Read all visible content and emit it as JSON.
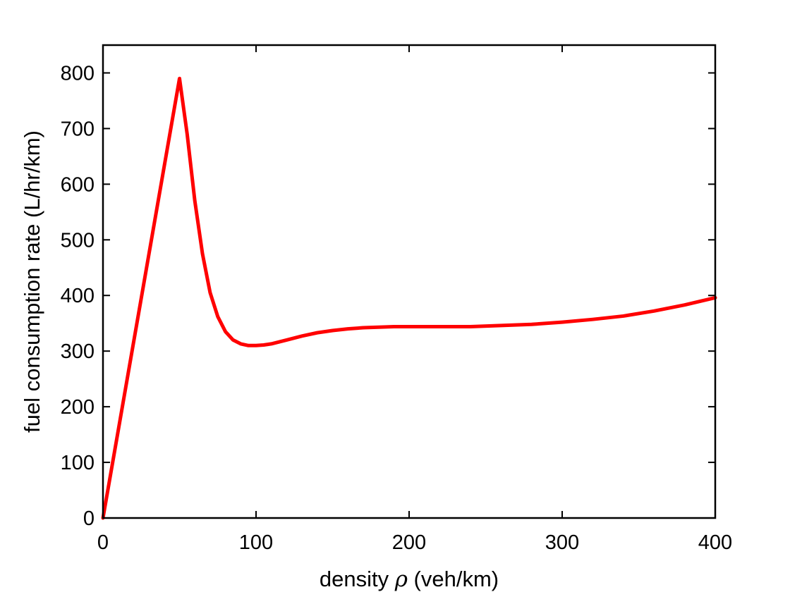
{
  "chart_data": {
    "type": "line",
    "title": "",
    "xlabel_before": "density ",
    "xlabel_symbol": "ρ",
    "xlabel_after": " (veh/km)",
    "ylabel": "fuel consumption rate (L/hr/km)",
    "xlim": [
      0,
      400
    ],
    "ylim": [
      0,
      850
    ],
    "xticks": [
      0,
      100,
      200,
      300,
      400
    ],
    "yticks": [
      0,
      100,
      200,
      300,
      400,
      500,
      600,
      700,
      800
    ],
    "xtick_labels": [
      "0",
      "100",
      "200",
      "300",
      "400"
    ],
    "ytick_labels": [
      "0",
      "100",
      "200",
      "300",
      "400",
      "500",
      "600",
      "700",
      "800"
    ],
    "grid": false,
    "legend": "none",
    "series": [
      {
        "color": "#ff0000",
        "x": [
          0,
          10,
          20,
          30,
          40,
          50,
          55,
          60,
          65,
          70,
          75,
          80,
          85,
          90,
          95,
          100,
          105,
          110,
          120,
          130,
          140,
          150,
          160,
          170,
          180,
          190,
          200,
          220,
          240,
          260,
          280,
          300,
          320,
          340,
          360,
          380,
          400
        ],
        "y": [
          0,
          158,
          316,
          474,
          632,
          790,
          690,
          570,
          475,
          405,
          362,
          335,
          320,
          313,
          310,
          310,
          311,
          313,
          320,
          327,
          333,
          337,
          340,
          342,
          343,
          344,
          344,
          344,
          344,
          346,
          348,
          352,
          357,
          363,
          372,
          383,
          396
        ]
      }
    ]
  }
}
